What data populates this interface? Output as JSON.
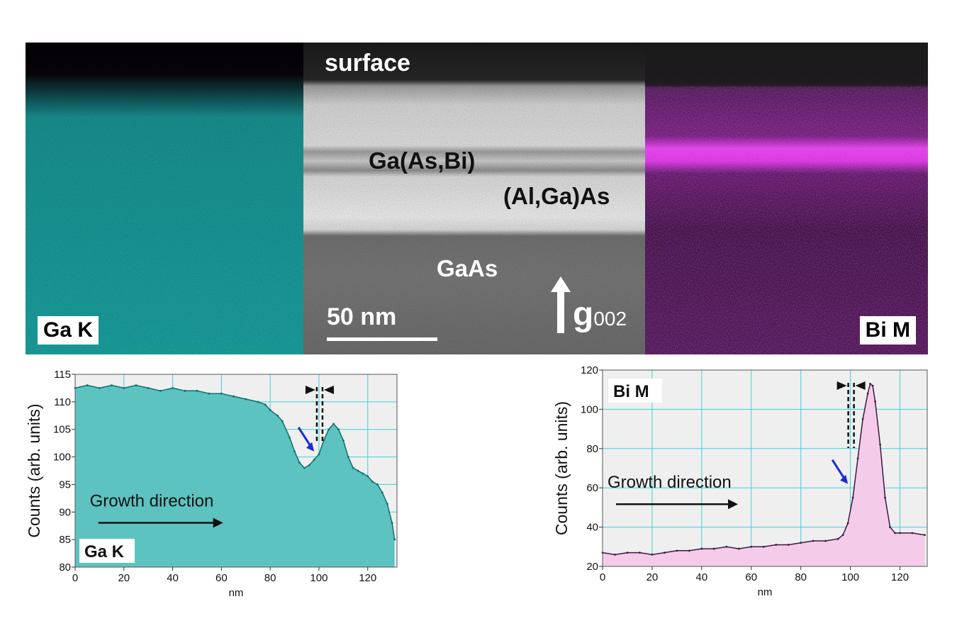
{
  "panels": {
    "ga_map": {
      "label": "Ga K",
      "color": "#1fa7a4"
    },
    "tem": {
      "surface_label": "surface",
      "layer_gaasbi": "Ga(As,Bi)",
      "layer_algaas": "(Al,Ga)As",
      "substrate_label": "GaAs",
      "scale_bar": "50 nm",
      "g_vector": "g",
      "g_subscript": "002"
    },
    "bi_map": {
      "label": "Bi M",
      "color": "#c020c8"
    }
  },
  "chart_data": [
    {
      "type": "area",
      "panel_label": "Ga K",
      "xlabel": "nm",
      "ylabel": "Counts (arb. units)",
      "xlim": [
        0,
        132
      ],
      "ylim": [
        80,
        115
      ],
      "xticks": [
        0,
        20,
        40,
        60,
        80,
        100,
        120
      ],
      "yticks": [
        80,
        85,
        90,
        95,
        100,
        105,
        110,
        115
      ],
      "grid": true,
      "fill_color": "#5cc3c1",
      "line_color": "#0e6f6b",
      "annotation": "Growth direction",
      "marker_x": 100,
      "arrow_point": {
        "x": 98,
        "y": 101
      },
      "x": [
        0,
        5,
        10,
        15,
        20,
        25,
        30,
        35,
        40,
        45,
        50,
        55,
        60,
        65,
        70,
        75,
        78,
        80,
        83,
        85,
        88,
        90,
        92,
        94,
        96,
        98,
        100,
        102,
        104,
        106,
        108,
        110,
        112,
        114,
        116,
        118,
        120,
        122,
        124,
        126,
        128,
        130,
        131
      ],
      "y": [
        112.5,
        113,
        112.5,
        113,
        112.5,
        113,
        112.5,
        112,
        112.5,
        112,
        112,
        111.5,
        111.5,
        111,
        110.5,
        110,
        109.5,
        108.5,
        107.5,
        106.5,
        103.5,
        101,
        99,
        98,
        98.5,
        99.5,
        100.5,
        103,
        105,
        106,
        105,
        103,
        100,
        98,
        97.5,
        97,
        96.5,
        95.5,
        95,
        93.5,
        91.5,
        88,
        85
      ]
    },
    {
      "type": "area",
      "panel_label": "Bi M",
      "xlabel": "nm",
      "ylabel": "Counts (arb. units)",
      "xlim": [
        0,
        131
      ],
      "ylim": [
        20,
        120
      ],
      "xticks": [
        0,
        20,
        40,
        60,
        80,
        100,
        120
      ],
      "yticks": [
        20,
        40,
        60,
        80,
        100,
        120
      ],
      "grid": true,
      "fill_color": "#f4cbe9",
      "line_color": "#3a1a40",
      "annotation": "Growth direction",
      "marker_x": 100,
      "arrow_point": {
        "x": 99,
        "y": 62
      },
      "x": [
        0,
        5,
        10,
        15,
        20,
        25,
        30,
        35,
        40,
        45,
        50,
        55,
        60,
        65,
        70,
        75,
        80,
        85,
        90,
        95,
        97,
        99,
        101,
        103,
        105,
        107,
        108,
        109,
        110,
        112,
        114,
        116,
        118,
        120,
        125,
        130
      ],
      "y": [
        27,
        26,
        27,
        27,
        26,
        27,
        28,
        28,
        29,
        29,
        30,
        29,
        30,
        30,
        31,
        31,
        32,
        33,
        33,
        34,
        36,
        42,
        55,
        75,
        95,
        108,
        113,
        112,
        104,
        82,
        55,
        40,
        37,
        37,
        37,
        36
      ]
    }
  ]
}
